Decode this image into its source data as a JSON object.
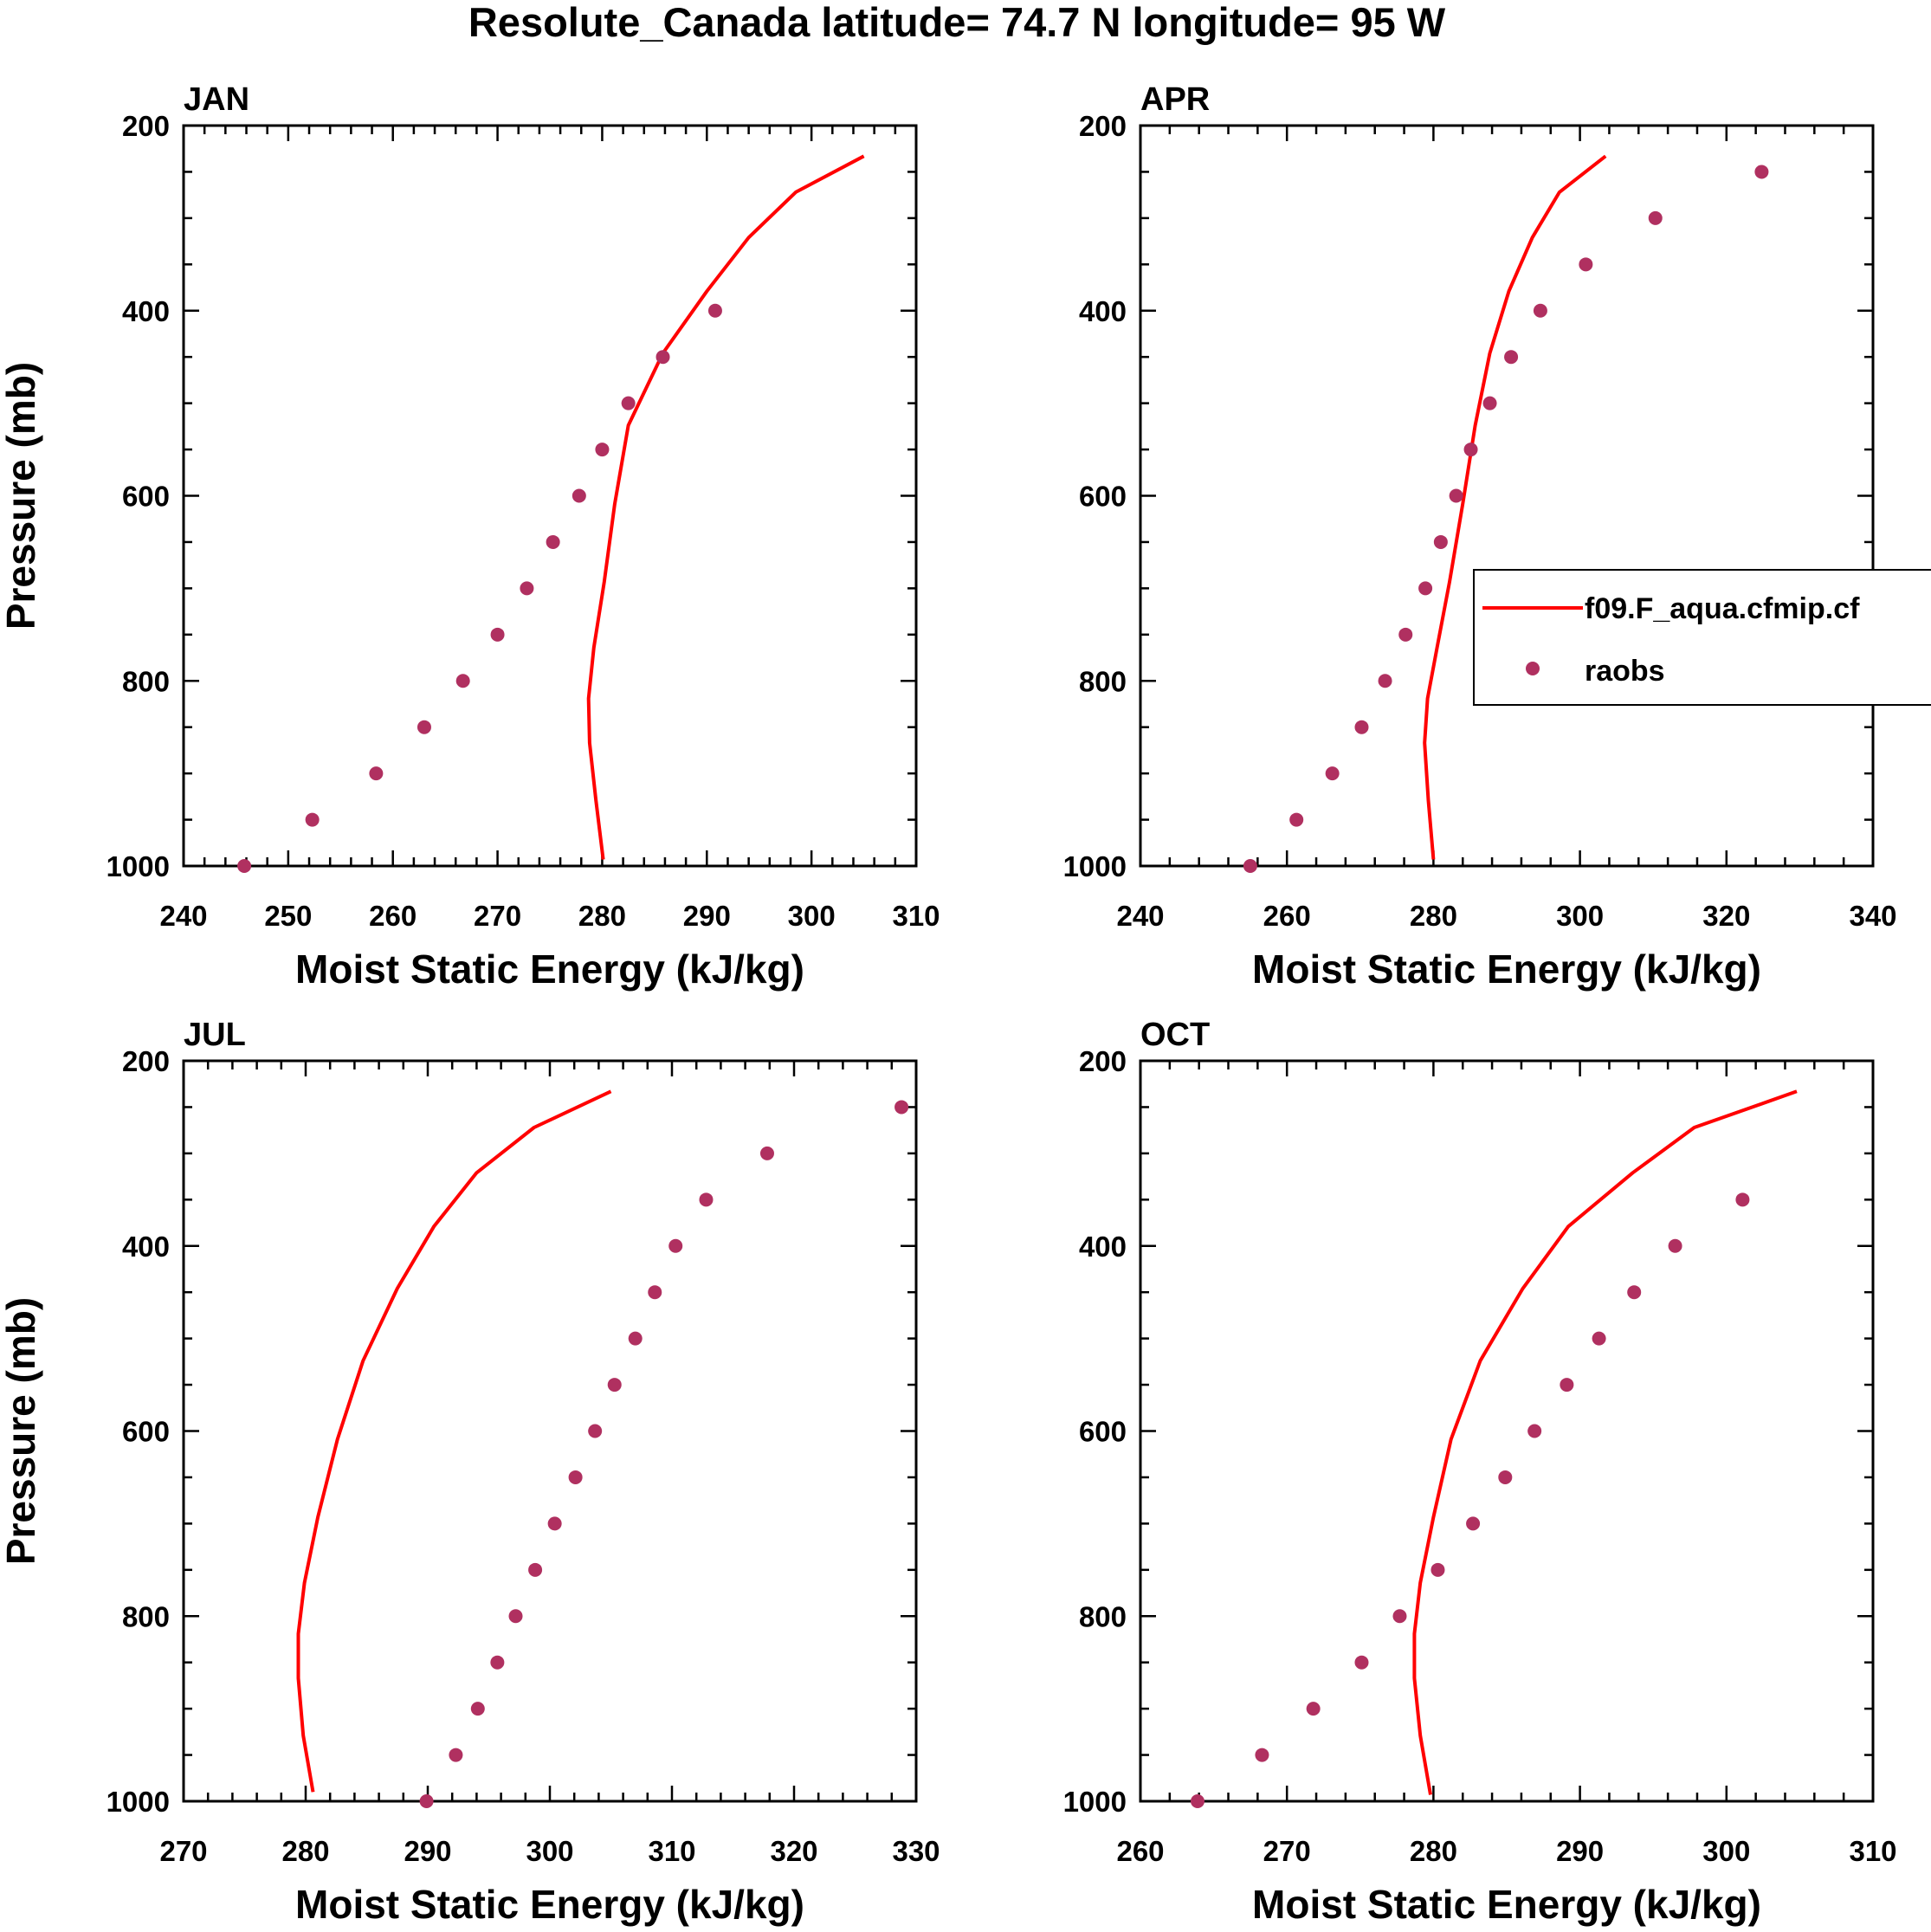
{
  "figure": {
    "title": "Resolute_Canada  latitude= 74.7 N longitude= 95 W"
  },
  "legend": {
    "model_label": "f09.F_aqua.cfmip.cf",
    "obs_label": "raobs",
    "model_color": "#ff0000",
    "obs_color": "#b03060"
  },
  "chart_data": [
    {
      "type": "line",
      "panel": "JAN",
      "title": "JAN",
      "xlabel": "Moist Static Energy (kJ/kg)",
      "ylabel": "Pressure (mb)",
      "xlim": [
        240,
        310
      ],
      "ylim": [
        1000,
        200
      ],
      "xticks": [
        240,
        250,
        260,
        270,
        280,
        290,
        300,
        310
      ],
      "yticks": [
        200,
        400,
        600,
        800,
        1000
      ],
      "series": [
        {
          "name": "f09.F_aqua.cfmip.cf",
          "kind": "line",
          "x": [
            305,
            298.5,
            294,
            290,
            285.8,
            282.5,
            281.2,
            280.2,
            279.2,
            278.7,
            278.8,
            279.4,
            280.1
          ],
          "y": [
            233,
            272,
            321,
            379,
            446,
            524,
            609,
            693,
            764,
            819,
            867,
            929,
            993
          ]
        },
        {
          "name": "raobs",
          "kind": "points",
          "x": [
            290.8,
            285.8,
            282.5,
            280,
            277.8,
            275.3,
            272.8,
            270,
            266.7,
            263,
            258.4,
            252.3,
            245.8
          ],
          "y": [
            400,
            450,
            500,
            550,
            600,
            650,
            700,
            750,
            800,
            850,
            900,
            950,
            1000
          ]
        }
      ]
    },
    {
      "type": "line",
      "panel": "APR",
      "title": "APR",
      "xlabel": "Moist Static Energy (kJ/kg)",
      "ylabel": "",
      "xlim": [
        240,
        340
      ],
      "ylim": [
        1000,
        200
      ],
      "xticks": [
        240,
        260,
        280,
        300,
        320,
        340
      ],
      "yticks": [
        200,
        400,
        600,
        800,
        1000
      ],
      "series": [
        {
          "name": "f09.F_aqua.cfmip.cf",
          "kind": "line",
          "x": [
            303.5,
            297.2,
            293.5,
            290.3,
            287.7,
            285.7,
            284,
            282.2,
            280.5,
            279.2,
            278.8,
            279.3,
            280
          ],
          "y": [
            233,
            272,
            321,
            379,
            446,
            524,
            609,
            693,
            764,
            819,
            867,
            929,
            993
          ]
        },
        {
          "name": "raobs",
          "kind": "points",
          "x": [
            324.8,
            310.3,
            300.8,
            294.6,
            290.6,
            287.7,
            285.1,
            283.1,
            281,
            278.9,
            276.2,
            273.4,
            270.2,
            266.2,
            261.3,
            255
          ],
          "y": [
            250,
            300,
            350,
            400,
            450,
            500,
            550,
            600,
            650,
            700,
            750,
            800,
            850,
            900,
            950,
            1000
          ]
        }
      ]
    },
    {
      "type": "line",
      "panel": "JUL",
      "title": "JUL",
      "xlabel": "Moist Static Energy (kJ/kg)",
      "ylabel": "Pressure (mb)",
      "xlim": [
        270,
        330
      ],
      "ylim": [
        1000,
        200
      ],
      "xticks": [
        270,
        280,
        290,
        300,
        310,
        320,
        330
      ],
      "yticks": [
        200,
        400,
        600,
        800,
        1000
      ],
      "series": [
        {
          "name": "f09.F_aqua.cfmip.cf",
          "kind": "line",
          "x": [
            305,
            298.7,
            294,
            290.5,
            287.5,
            284.7,
            282.6,
            281,
            279.9,
            279.4,
            279.4,
            279.8,
            280.6
          ],
          "y": [
            233,
            272,
            321,
            379,
            446,
            524,
            609,
            693,
            764,
            819,
            867,
            929,
            990
          ]
        },
        {
          "name": "raobs",
          "kind": "points",
          "x": [
            328.8,
            317.8,
            312.8,
            310.3,
            308.6,
            307,
            305.3,
            303.7,
            302.1,
            300.4,
            298.8,
            297.2,
            295.7,
            294.1,
            292.3,
            289.9
          ],
          "y": [
            250,
            300,
            350,
            400,
            450,
            500,
            550,
            600,
            650,
            700,
            750,
            800,
            850,
            900,
            950,
            1000
          ]
        }
      ]
    },
    {
      "type": "line",
      "panel": "OCT",
      "title": "OCT",
      "xlabel": "Moist Static Energy (kJ/kg)",
      "ylabel": "",
      "xlim": [
        260,
        310
      ],
      "ylim": [
        1000,
        200
      ],
      "xticks": [
        260,
        270,
        280,
        290,
        300,
        310
      ],
      "yticks": [
        200,
        400,
        600,
        800,
        1000
      ],
      "series": [
        {
          "name": "f09.F_aqua.cfmip.cf",
          "kind": "line",
          "x": [
            304.8,
            297.8,
            293.6,
            289.2,
            286.1,
            283.2,
            281.2,
            280,
            279.1,
            278.7,
            278.7,
            279.1,
            279.8
          ],
          "y": [
            233,
            272,
            321,
            379,
            446,
            524,
            609,
            693,
            764,
            819,
            867,
            929,
            993
          ]
        },
        {
          "name": "raobs",
          "kind": "points",
          "x": [
            301.1,
            296.5,
            293.7,
            291.3,
            289.1,
            286.9,
            284.9,
            282.7,
            280.3,
            277.7,
            275.1,
            271.8,
            268.3,
            263.9
          ],
          "y": [
            350,
            400,
            450,
            500,
            550,
            600,
            650,
            700,
            750,
            800,
            850,
            900,
            950,
            1000
          ]
        }
      ]
    }
  ]
}
